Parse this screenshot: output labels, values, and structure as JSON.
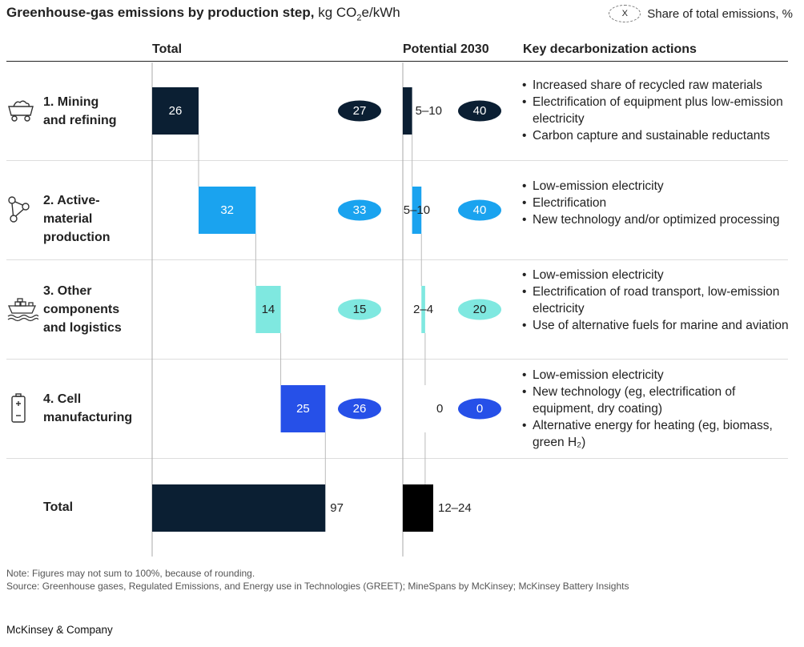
{
  "title": {
    "bold": "Greenhouse-gas emissions by production step,",
    "unit_prefix": "kg CO",
    "unit_sub": "2",
    "unit_suffix": "e/kWh"
  },
  "legend": {
    "marker": "X",
    "label": "Share of total emissions, %"
  },
  "columns": {
    "total": "Total",
    "potential": "Potential 2030",
    "actions": "Key decarbonization actions"
  },
  "steps": [
    {
      "label_lines": [
        "1. Mining",
        "and refining"
      ],
      "icon": "mining-cart-icon",
      "actions": [
        "Increased share of recycled raw materials",
        "Electrification of equipment plus low-emission electricity",
        "Carbon capture and sustainable reductants"
      ]
    },
    {
      "label_lines": [
        "2. Active-",
        "material",
        "production"
      ],
      "icon": "molecule-icon",
      "actions": [
        "Low-emission electricity",
        "Electrification",
        "New technology and/or optimized processing"
      ]
    },
    {
      "label_lines": [
        "3. Other",
        "components",
        "and logistics"
      ],
      "icon": "cargo-ship-icon",
      "actions": [
        "Low-emission electricity",
        "Electrification of road transport, low-emission electricity",
        "Use of alternative fuels for marine and aviation"
      ]
    },
    {
      "label_lines": [
        "4. Cell",
        "manufacturing"
      ],
      "icon": "battery-icon",
      "actions": [
        "Low-emission electricity",
        "New technology (eg, electrification of equipment, dry coating)",
        "Alternative energy for heating (eg, biomass, green H₂)"
      ]
    }
  ],
  "total_row": {
    "label": "Total"
  },
  "footer": {
    "note": "Note: Figures may not sum to 100%, because of rounding.",
    "source": "Source: Greenhouse gases, Regulated Emissions, and Energy use in Technologies (GREET); MineSpans by McKinsey; McKinsey Battery Insights",
    "brand": "McKinsey & Company"
  },
  "chart_data": {
    "type": "bar",
    "subtype": "waterfall",
    "categories": [
      "1. Mining and refining",
      "2. Active-material production",
      "3. Other components and logistics",
      "4. Cell manufacturing",
      "Total"
    ],
    "colors": [
      "#0b1f33",
      "#1aa3ef",
      "#7fe8e0",
      "#2650e8",
      "#0b1f33"
    ],
    "total": {
      "values": [
        26,
        32,
        14,
        25,
        97
      ],
      "labels": [
        "26",
        "32",
        "14",
        "25",
        "97"
      ],
      "share_pct": [
        27,
        33,
        15,
        26
      ]
    },
    "potential_2030": {
      "ranges": [
        [
          5,
          10
        ],
        [
          5,
          10
        ],
        [
          2,
          4
        ],
        [
          0,
          0
        ],
        [
          12,
          24
        ]
      ],
      "labels": [
        "5–10",
        "5–10",
        "2–4",
        "0",
        "12–24"
      ],
      "share_pct": [
        40,
        40,
        20,
        0
      ],
      "total_color": "#000000"
    }
  }
}
